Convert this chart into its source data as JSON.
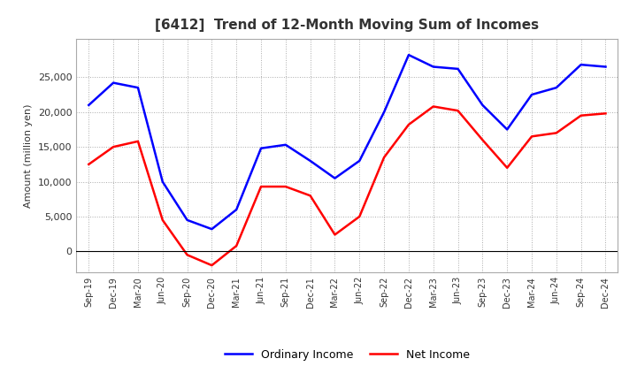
{
  "title": "[6412]  Trend of 12-Month Moving Sum of Incomes",
  "ylabel": "Amount (million yen)",
  "x_labels": [
    "Sep-19",
    "Dec-19",
    "Mar-20",
    "Jun-20",
    "Sep-20",
    "Dec-20",
    "Mar-21",
    "Jun-21",
    "Sep-21",
    "Dec-21",
    "Mar-22",
    "Jun-22",
    "Sep-22",
    "Dec-22",
    "Mar-23",
    "Jun-23",
    "Sep-23",
    "Dec-23",
    "Mar-24",
    "Jun-24",
    "Sep-24",
    "Dec-24"
  ],
  "ordinary_income": [
    21000,
    24200,
    23500,
    10000,
    4500,
    3200,
    6000,
    14800,
    15300,
    13000,
    10500,
    13000,
    20000,
    28200,
    26500,
    26200,
    21000,
    17500,
    22500,
    23500,
    26800,
    26500
  ],
  "net_income": [
    12500,
    15000,
    15800,
    4500,
    -500,
    -2000,
    800,
    9300,
    9300,
    8000,
    2400,
    5000,
    13500,
    18200,
    20800,
    20200,
    16000,
    12000,
    16500,
    17000,
    19500,
    19800
  ],
  "ordinary_income_color": "#0000FF",
  "net_income_color": "#FF0000",
  "background_color": "#FFFFFF",
  "plot_bg_color": "#FFFFFF",
  "grid_color": "#AAAAAA",
  "ylim_min": -3000,
  "ylim_max": 30500,
  "yticks": [
    0,
    5000,
    10000,
    15000,
    20000,
    25000
  ],
  "line_width": 1.8,
  "title_fontsize": 11,
  "legend_ordinary": "Ordinary Income",
  "legend_net": "Net Income"
}
